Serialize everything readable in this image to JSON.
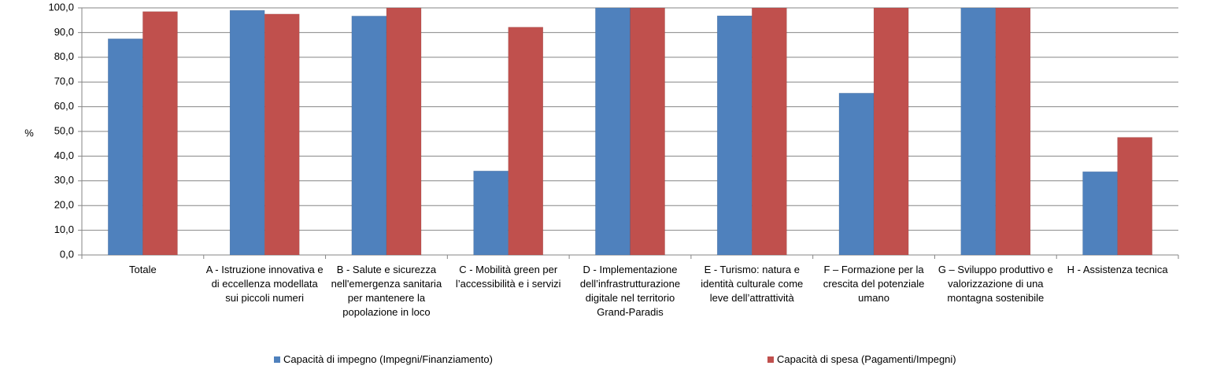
{
  "chart_data": {
    "type": "bar",
    "y_label": "%",
    "categories": [
      "Totale",
      "A - Istruzione innovativa e di eccellenza modellata sui piccoli numeri",
      "B - Salute e sicurezza nell'emergenza sanitaria per mantenere la popolazione in loco",
      "C - Mobilità green per l’accessibilità e i servizi",
      "D - Implementazione dell’infrastrutturazione digitale nel territorio Grand-Paradis",
      "E - Turismo: natura e identità culturale come leve dell’attrattività",
      "F – Formazione per la crescita del potenziale umano",
      "G – Sviluppo produttivo e valorizzazione di una montagna sostenibile",
      "H - Assistenza tecnica"
    ],
    "series": [
      {
        "name": "Capacità di impegno (Impegni/Finanziamento)",
        "color": "#4f81bd",
        "values": [
          87.5,
          99,
          96.7,
          34,
          100,
          96.8,
          65.5,
          100,
          33.7
        ]
      },
      {
        "name": "Capacità di spesa (Pagamenti/Impegni)",
        "color": "#c0504d",
        "values": [
          98.5,
          97.5,
          100,
          92.2,
          100,
          100,
          100,
          100,
          47.6
        ]
      }
    ],
    "ylim": [
      0,
      100
    ],
    "yticks": [
      {
        "value": 0,
        "label": "0,0"
      },
      {
        "value": 10,
        "label": "10,0"
      },
      {
        "value": 20,
        "label": "20,0"
      },
      {
        "value": 30,
        "label": "30,0"
      },
      {
        "value": 40,
        "label": "40,0"
      },
      {
        "value": 50,
        "label": "50,0"
      },
      {
        "value": 60,
        "label": "60,0"
      },
      {
        "value": 70,
        "label": "70,0"
      },
      {
        "value": 80,
        "label": "80,0"
      },
      {
        "value": 90,
        "label": "90,0"
      },
      {
        "value": 100,
        "label": "100,0"
      }
    ],
    "grid": true
  }
}
